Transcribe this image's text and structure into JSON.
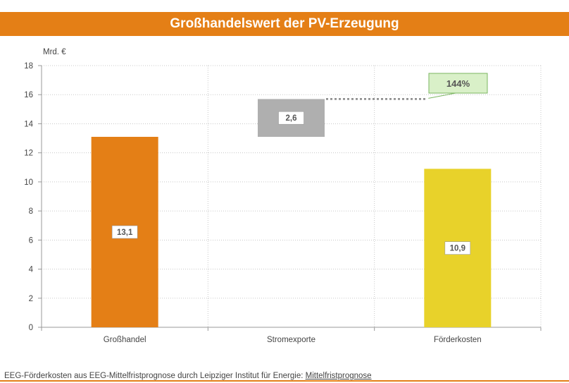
{
  "title": "Großhandelswert der PV-Erzeugung",
  "footer": {
    "text": "EEG-Förderkosten aus EEG-Mittelfristprognose durch Leipziger Institut für Energie: ",
    "link": "Mittelfristprognose"
  },
  "colors": {
    "title_bg": "#E47F16",
    "grosshandel": "#E47F16",
    "stromexporte": "#AFAFAF",
    "foerderkosten": "#E8D22A",
    "annotation_bg": "#D9F0C8",
    "annotation_border": "#7BB661"
  },
  "chart_data": {
    "type": "bar",
    "subtype": "waterfall",
    "ylabel": "Mrd. €",
    "ylim": [
      0,
      18
    ],
    "yticks": [
      "0",
      "2",
      "4",
      "6",
      "8",
      "10",
      "12",
      "14",
      "16",
      "18"
    ],
    "grid": true,
    "categories": [
      "Großhandel",
      "Stromexporte",
      "Förderkosten"
    ],
    "bars": [
      {
        "category": "Großhandel",
        "base": 0,
        "value": 13.1,
        "label": "13,1",
        "color": "#E47F16"
      },
      {
        "category": "Stromexporte",
        "base": 13.1,
        "value": 2.6,
        "label": "2,6",
        "color": "#AFAFAF"
      },
      {
        "category": "Förderkosten",
        "base": 0,
        "value": 10.9,
        "label": "10,9",
        "color": "#E8D22A"
      }
    ],
    "annotation": {
      "text": "144%",
      "at_value": 15.7
    }
  }
}
